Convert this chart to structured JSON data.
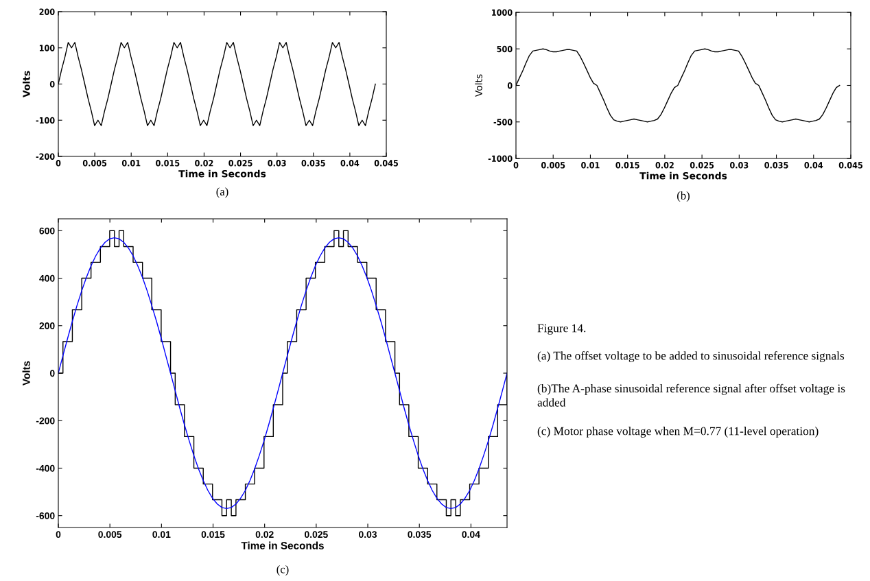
{
  "chart_data": [
    {
      "type": "line",
      "title": "(a)",
      "xlabel": "Time in Seconds",
      "ylabel": "Volts",
      "xlim": [
        0,
        0.045
      ],
      "xticks": [
        0,
        0.005,
        0.01,
        0.015,
        0.02,
        0.025,
        0.03,
        0.035,
        0.04,
        0.045
      ],
      "ylim": [
        -200,
        200
      ],
      "yticks": [
        -200,
        -100,
        0,
        100,
        200
      ],
      "x": [
        0,
        0.00045,
        0.00091,
        0.00136,
        0.00181,
        0.00227,
        0.00272,
        0.00317,
        0.00363,
        0.00408,
        0.00453,
        0.00498,
        0.00544,
        0.00589,
        0.00634,
        0.0068,
        0.00725,
        0.0077,
        0.00816,
        0.00861,
        0.00906,
        0.00952,
        0.00997,
        0.01042,
        0.01088,
        0.01133,
        0.01178,
        0.01223,
        0.01269,
        0.01314,
        0.01359,
        0.01405,
        0.0145,
        0.01495,
        0.01541,
        0.01586,
        0.01631,
        0.01677,
        0.01722,
        0.01767,
        0.01813,
        0.01858,
        0.01903,
        0.01948,
        0.01994,
        0.02039,
        0.02084,
        0.0213,
        0.02175,
        0.0222,
        0.02266,
        0.02311,
        0.02356,
        0.02402,
        0.02447,
        0.02492,
        0.02538,
        0.02583,
        0.02628,
        0.02673,
        0.02719,
        0.02764,
        0.02809,
        0.02855,
        0.029,
        0.02945,
        0.02991,
        0.03036,
        0.03081,
        0.03127,
        0.03172,
        0.03217,
        0.03263,
        0.03308,
        0.03353,
        0.03398,
        0.03444,
        0.03489,
        0.03534,
        0.0358,
        0.03625,
        0.0367,
        0.03716,
        0.03761,
        0.03806,
        0.03852,
        0.03897,
        0.03942,
        0.03988,
        0.04033,
        0.04078,
        0.04123,
        0.04169,
        0.04214,
        0.04259,
        0.04305,
        0.0435
      ],
      "series": [
        {
          "color": "#000000",
          "values": [
            0,
            40,
            75,
            115,
            100,
            115,
            75,
            40,
            0,
            -40,
            -75,
            -115,
            -100,
            -115,
            -75,
            -40,
            0,
            40,
            75,
            115,
            100,
            115,
            75,
            40,
            0,
            -40,
            -75,
            -115,
            -100,
            -115,
            -75,
            -40,
            0,
            40,
            75,
            115,
            100,
            115,
            75,
            40,
            0,
            -40,
            -75,
            -115,
            -100,
            -115,
            -75,
            -40,
            0,
            40,
            75,
            115,
            100,
            115,
            75,
            40,
            0,
            -40,
            -75,
            -115,
            -100,
            -115,
            -75,
            -40,
            0,
            40,
            75,
            115,
            100,
            115,
            75,
            40,
            0,
            -40,
            -75,
            -115,
            -100,
            -115,
            -75,
            -40,
            0,
            40,
            75,
            115,
            100,
            115,
            75,
            40,
            0,
            -40,
            -75,
            -115,
            -100,
            -115,
            -75,
            -40,
            0
          ]
        }
      ]
    },
    {
      "type": "line",
      "title": "(b)",
      "xlabel": "Time in Seconds",
      "ylabel": "Volts",
      "xlim": [
        0,
        0.045
      ],
      "xticks": [
        0,
        0.005,
        0.01,
        0.015,
        0.02,
        0.025,
        0.03,
        0.035,
        0.04,
        0.045
      ],
      "ylim": [
        -1000,
        1000
      ],
      "yticks": [
        -1000,
        -500,
        0,
        500,
        1000
      ],
      "x": [
        0,
        0.00045,
        0.00091,
        0.00136,
        0.00181,
        0.00227,
        0.00272,
        0.00317,
        0.00363,
        0.00408,
        0.00453,
        0.00498,
        0.00544,
        0.00589,
        0.00634,
        0.0068,
        0.00725,
        0.0077,
        0.00816,
        0.00861,
        0.00906,
        0.00952,
        0.00997,
        0.01042,
        0.01088,
        0.01133,
        0.01178,
        0.01223,
        0.01269,
        0.01314,
        0.01359,
        0.01405,
        0.0145,
        0.01495,
        0.01541,
        0.01586,
        0.01631,
        0.01677,
        0.01722,
        0.01767,
        0.01813,
        0.01858,
        0.01903,
        0.01948,
        0.01994,
        0.02039,
        0.02084,
        0.0213,
        0.02175,
        0.0222,
        0.02266,
        0.02311,
        0.02356,
        0.02402,
        0.02447,
        0.02492,
        0.02538,
        0.02583,
        0.02628,
        0.02673,
        0.02719,
        0.02764,
        0.02809,
        0.02855,
        0.029,
        0.02945,
        0.02991,
        0.03036,
        0.03081,
        0.03127,
        0.03172,
        0.03217,
        0.03263,
        0.03308,
        0.03353,
        0.03398,
        0.03444,
        0.03489,
        0.03534,
        0.0358,
        0.03625,
        0.0367,
        0.03716,
        0.03761,
        0.03806,
        0.03852,
        0.03897,
        0.03942,
        0.03988,
        0.04033,
        0.04078,
        0.04123,
        0.04169,
        0.04214,
        0.04259,
        0.04305,
        0.0435
      ],
      "series": [
        {
          "color": "#000000",
          "values": [
            0,
            100,
            200,
            310,
            410,
            470,
            480,
            490,
            500,
            490,
            470,
            460,
            460,
            470,
            480,
            490,
            490,
            480,
            470,
            400,
            310,
            210,
            110,
            30,
            0,
            -100,
            -200,
            -310,
            -410,
            -470,
            -490,
            -500,
            -490,
            -480,
            -470,
            -460,
            -470,
            -480,
            -490,
            -500,
            -490,
            -480,
            -460,
            -400,
            -310,
            -210,
            -110,
            -30,
            0,
            100,
            200,
            310,
            410,
            470,
            480,
            490,
            500,
            490,
            470,
            460,
            460,
            470,
            480,
            490,
            490,
            480,
            470,
            400,
            310,
            210,
            110,
            30,
            0,
            -100,
            -200,
            -310,
            -410,
            -470,
            -490,
            -500,
            -490,
            -480,
            -470,
            -460,
            -470,
            -480,
            -490,
            -500,
            -490,
            -480,
            -460,
            -400,
            -310,
            -210,
            -110,
            -30,
            0
          ]
        }
      ]
    },
    {
      "type": "line",
      "title": "(c)",
      "xlabel": "Time in Seconds",
      "ylabel": "Volts",
      "xlim": [
        0,
        0.0435
      ],
      "xticks": [
        0,
        0.005,
        0.01,
        0.015,
        0.02,
        0.025,
        0.03,
        0.035,
        0.04
      ],
      "ylim": [
        -650,
        650
      ],
      "yticks": [
        -600,
        -400,
        -200,
        0,
        200,
        400,
        600
      ],
      "x": [
        0,
        0.00045,
        0.00091,
        0.00136,
        0.00181,
        0.00227,
        0.00272,
        0.00317,
        0.00363,
        0.00408,
        0.00453,
        0.00498,
        0.00544,
        0.00589,
        0.00634,
        0.0068,
        0.00725,
        0.0077,
        0.00816,
        0.00861,
        0.00906,
        0.00952,
        0.00997,
        0.01042,
        0.01088,
        0.01133,
        0.01178,
        0.01223,
        0.01269,
        0.01314,
        0.01359,
        0.01405,
        0.0145,
        0.01495,
        0.01541,
        0.01586,
        0.01631,
        0.01677,
        0.01722,
        0.01767,
        0.01813,
        0.01858,
        0.01903,
        0.01948,
        0.01994,
        0.02039,
        0.02084,
        0.0213,
        0.02175,
        0.0222,
        0.02266,
        0.02311,
        0.02356,
        0.02402,
        0.02447,
        0.02492,
        0.02538,
        0.02583,
        0.02628,
        0.02673,
        0.02719,
        0.02764,
        0.02809,
        0.02855,
        0.029,
        0.02945,
        0.02991,
        0.03036,
        0.03081,
        0.03127,
        0.03172,
        0.03217,
        0.03263,
        0.03308,
        0.03353,
        0.03398,
        0.03444,
        0.03489,
        0.03534,
        0.0358,
        0.03625,
        0.0367,
        0.03716,
        0.03761,
        0.03806,
        0.03852,
        0.03897,
        0.03942,
        0.03988,
        0.04033,
        0.04078,
        0.04123,
        0.04169,
        0.04214,
        0.04259,
        0.04305,
        0.0435
      ],
      "series": [
        {
          "type": "step",
          "color": "#000000",
          "values": [
            0,
            133,
            133,
            267,
            267,
            400,
            400,
            467,
            467,
            533,
            533,
            600,
            533,
            600,
            533,
            533,
            467,
            467,
            400,
            400,
            267,
            267,
            133,
            133,
            0,
            -133,
            -133,
            -267,
            -267,
            -400,
            -400,
            -467,
            -467,
            -533,
            -533,
            -600,
            -533,
            -600,
            -533,
            -533,
            -467,
            -467,
            -400,
            -400,
            -267,
            -267,
            -133,
            -133,
            0,
            133,
            133,
            267,
            267,
            400,
            400,
            467,
            467,
            533,
            533,
            600,
            533,
            600,
            533,
            533,
            467,
            467,
            400,
            400,
            267,
            267,
            133,
            133,
            0,
            -133,
            -133,
            -267,
            -267,
            -400,
            -400,
            -467,
            -467,
            -533,
            -533,
            -600,
            -533,
            -600,
            -533,
            -533,
            -467,
            -467,
            -400,
            -400,
            -267,
            -267,
            -133,
            -133,
            0
          ]
        },
        {
          "type": "line",
          "color": "#0000ff",
          "values": [
            0,
            74,
            148,
            218,
            285,
            347,
            403,
            452,
            494,
            527,
            551,
            566,
            570,
            566,
            551,
            527,
            494,
            452,
            403,
            347,
            285,
            218,
            148,
            74,
            0,
            -74,
            -148,
            -218,
            -285,
            -347,
            -403,
            -452,
            -494,
            -527,
            -551,
            -566,
            -570,
            -566,
            -551,
            -527,
            -494,
            -452,
            -403,
            -347,
            -285,
            -218,
            -148,
            -74,
            0,
            74,
            148,
            218,
            285,
            347,
            403,
            452,
            494,
            527,
            551,
            566,
            570,
            566,
            551,
            527,
            494,
            452,
            403,
            347,
            285,
            218,
            148,
            74,
            0,
            -74,
            -148,
            -218,
            -285,
            -347,
            -403,
            -452,
            -494,
            -527,
            -551,
            -566,
            -570,
            -566,
            -551,
            -527,
            -494,
            -452,
            -403,
            -347,
            -285,
            -218,
            -148,
            -74,
            0
          ]
        }
      ]
    },
    {
      "type": "other",
      "annotations": [
        "Figure 14.",
        "(a) The offset voltage to be added to sinusoidal reference signals",
        "(b)The A-phase sinusoidal reference signal after offset voltage is added",
        "(c) Motor phase voltage when M=0.77 (11-level operation)"
      ]
    }
  ]
}
